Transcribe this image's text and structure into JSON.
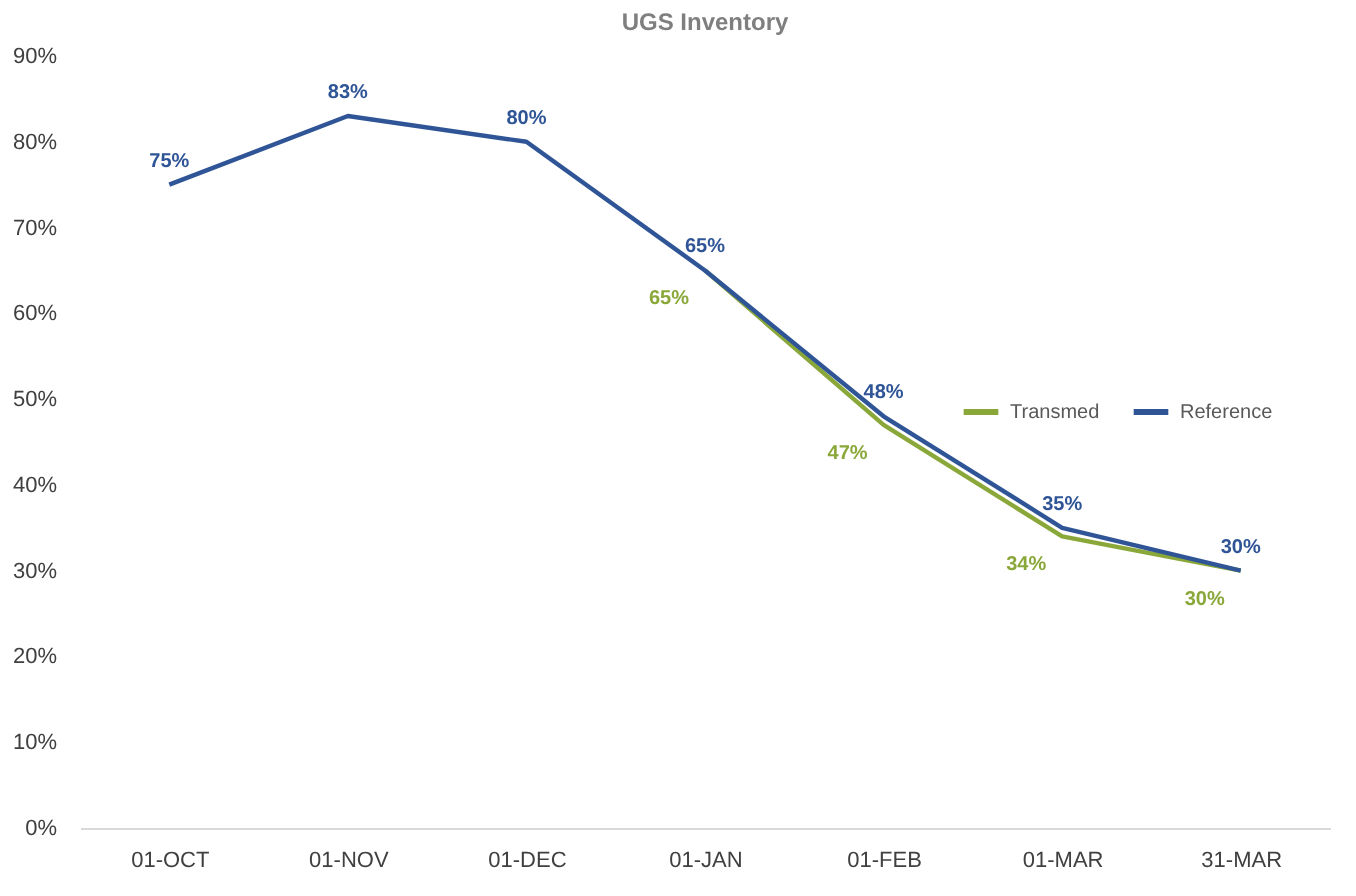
{
  "chart_data": {
    "type": "line",
    "title": "UGS Inventory",
    "categories": [
      "01-OCT",
      "01-NOV",
      "01-DEC",
      "01-JAN",
      "01-FEB",
      "01-MAR",
      "31-MAR"
    ],
    "series": [
      {
        "name": "Transmed",
        "color": "#8aa83a",
        "values": [
          null,
          null,
          null,
          65,
          47,
          34,
          30
        ],
        "value_labels": [
          null,
          null,
          null,
          "65%",
          "47%",
          "34%",
          "30%"
        ]
      },
      {
        "name": "Reference",
        "color": "#2f5597",
        "values": [
          75,
          83,
          80,
          65,
          48,
          35,
          30
        ],
        "value_labels": [
          "75%",
          "83%",
          "80%",
          "65%",
          "48%",
          "35%",
          "30%"
        ]
      }
    ],
    "ylim": [
      0,
      90
    ],
    "yticks": [
      {
        "value": 0,
        "label": "0%"
      },
      {
        "value": 10,
        "label": "10%"
      },
      {
        "value": 20,
        "label": "20%"
      },
      {
        "value": 30,
        "label": "30%"
      },
      {
        "value": 40,
        "label": "40%"
      },
      {
        "value": 50,
        "label": "50%"
      },
      {
        "value": 60,
        "label": "60%"
      },
      {
        "value": 70,
        "label": "70%"
      },
      {
        "value": 80,
        "label": "80%"
      },
      {
        "value": 90,
        "label": "90%"
      }
    ],
    "grid": false,
    "legend": "right",
    "marker": "none",
    "line_style": "solid"
  }
}
